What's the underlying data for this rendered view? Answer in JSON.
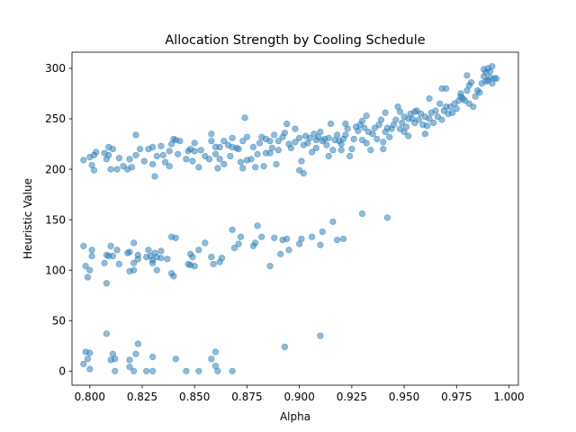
{
  "chart_data": {
    "type": "scatter",
    "title": "Allocation Strength by Cooling Schedule",
    "xlabel": "Alpha",
    "ylabel": "Heuristic Value",
    "xlim": [
      0.7915,
      1.0045
    ],
    "ylim": [
      -14.0,
      316.0
    ],
    "x_ticks": [
      0.8,
      0.825,
      0.85,
      0.875,
      0.9,
      0.925,
      0.95,
      0.975,
      1.0
    ],
    "x_tick_labels": [
      "0.800",
      "0.825",
      "0.850",
      "0.875",
      "0.900",
      "0.925",
      "0.950",
      "0.975",
      "1.000"
    ],
    "y_ticks": [
      0,
      50,
      100,
      150,
      200,
      250,
      300
    ],
    "y_tick_labels": [
      "0",
      "50",
      "100",
      "150",
      "200",
      "250",
      "300"
    ],
    "grid": false,
    "marker_color": "#1f77b4",
    "marker_alpha": 0.5,
    "series": [
      {
        "values": [
          [
            0.797,
            209
          ],
          [
            0.8,
            212
          ],
          [
            0.801,
            204
          ],
          [
            0.802,
            199
          ],
          [
            0.802,
            214
          ],
          [
            0.803,
            217
          ],
          [
            0.807,
            216
          ],
          [
            0.808,
            210
          ],
          [
            0.809,
            214
          ],
          [
            0.809,
            222
          ],
          [
            0.81,
            200
          ],
          [
            0.811,
            220
          ],
          [
            0.813,
            200
          ],
          [
            0.814,
            211
          ],
          [
            0.816,
            203
          ],
          [
            0.818,
            200
          ],
          [
            0.819,
            210
          ],
          [
            0.82,
            202
          ],
          [
            0.822,
            214
          ],
          [
            0.822,
            234
          ],
          [
            0.824,
            220
          ],
          [
            0.826,
            208
          ],
          [
            0.828,
            220
          ],
          [
            0.83,
            205
          ],
          [
            0.83,
            222
          ],
          [
            0.831,
            193
          ],
          [
            0.832,
            213
          ],
          [
            0.834,
            223
          ],
          [
            0.835,
            214
          ],
          [
            0.836,
            207
          ],
          [
            0.838,
            203
          ],
          [
            0.838,
            218
          ],
          [
            0.839,
            225
          ],
          [
            0.84,
            230
          ],
          [
            0.841,
            229
          ],
          [
            0.842,
            215
          ],
          [
            0.843,
            228
          ],
          [
            0.846,
            210
          ],
          [
            0.847,
            218
          ],
          [
            0.848,
            220
          ],
          [
            0.849,
            208
          ],
          [
            0.85,
            218
          ],
          [
            0.85,
            226
          ],
          [
            0.852,
            202
          ],
          [
            0.853,
            219
          ],
          [
            0.855,
            213
          ],
          [
            0.857,
            210
          ],
          [
            0.858,
            235
          ],
          [
            0.858,
            228
          ],
          [
            0.86,
            215
          ],
          [
            0.86,
            222
          ],
          [
            0.861,
            201
          ],
          [
            0.862,
            210
          ],
          [
            0.862,
            222
          ],
          [
            0.864,
            205
          ],
          [
            0.864,
            228
          ],
          [
            0.866,
            224
          ],
          [
            0.867,
            213
          ],
          [
            0.868,
            222
          ],
          [
            0.868,
            231
          ],
          [
            0.87,
            221
          ],
          [
            0.871,
            220
          ],
          [
            0.872,
            207
          ],
          [
            0.873,
            201
          ],
          [
            0.873,
            228
          ],
          [
            0.874,
            251
          ],
          [
            0.875,
            209
          ],
          [
            0.875,
            232
          ],
          [
            0.877,
            210
          ],
          [
            0.878,
            222
          ],
          [
            0.879,
            202
          ],
          [
            0.88,
            215
          ],
          [
            0.881,
            226
          ],
          [
            0.882,
            232
          ],
          [
            0.883,
            203
          ],
          [
            0.884,
            216
          ],
          [
            0.884,
            230
          ],
          [
            0.886,
            216
          ],
          [
            0.886,
            228
          ],
          [
            0.887,
            221
          ],
          [
            0.888,
            234
          ],
          [
            0.889,
            205
          ],
          [
            0.89,
            219
          ],
          [
            0.89,
            228
          ],
          [
            0.892,
            232
          ],
          [
            0.893,
            236
          ],
          [
            0.894,
            245
          ],
          [
            0.895,
            225
          ],
          [
            0.896,
            221
          ],
          [
            0.898,
            240
          ],
          [
            0.898,
            227
          ],
          [
            0.9,
            199
          ],
          [
            0.9,
            231
          ],
          [
            0.901,
            208
          ],
          [
            0.902,
            196
          ],
          [
            0.902,
            224
          ],
          [
            0.903,
            233
          ],
          [
            0.904,
            226
          ],
          [
            0.905,
            231
          ],
          [
            0.906,
            217
          ],
          [
            0.907,
            235
          ],
          [
            0.908,
            229
          ],
          [
            0.908,
            221
          ],
          [
            0.909,
            232
          ],
          [
            0.91,
            237
          ],
          [
            0.911,
            228
          ],
          [
            0.912,
            230
          ],
          [
            0.913,
            224
          ],
          [
            0.914,
            213
          ],
          [
            0.914,
            231
          ],
          [
            0.915,
            245
          ],
          [
            0.916,
            219
          ],
          [
            0.917,
            229
          ],
          [
            0.918,
            234
          ],
          [
            0.919,
            228
          ],
          [
            0.92,
            219
          ],
          [
            0.92,
            225
          ],
          [
            0.921,
            230
          ],
          [
            0.922,
            234
          ],
          [
            0.922,
            245
          ],
          [
            0.923,
            240
          ],
          [
            0.924,
            213
          ],
          [
            0.925,
            220
          ],
          [
            0.926,
            230
          ],
          [
            0.927,
            242
          ],
          [
            0.928,
            238
          ],
          [
            0.929,
            244
          ],
          [
            0.93,
            248
          ],
          [
            0.93,
            229
          ],
          [
            0.931,
            241
          ],
          [
            0.932,
            226
          ],
          [
            0.932,
            253
          ],
          [
            0.933,
            237
          ],
          [
            0.934,
            219
          ],
          [
            0.935,
            235
          ],
          [
            0.936,
            241
          ],
          [
            0.937,
            230
          ],
          [
            0.938,
            244
          ],
          [
            0.939,
            249
          ],
          [
            0.94,
            227
          ],
          [
            0.94,
            220
          ],
          [
            0.941,
            237
          ],
          [
            0.941,
            256
          ],
          [
            0.942,
            241
          ],
          [
            0.943,
            232
          ],
          [
            0.944,
            240
          ],
          [
            0.945,
            244
          ],
          [
            0.946,
            249
          ],
          [
            0.947,
            262
          ],
          [
            0.948,
            240
          ],
          [
            0.948,
            257
          ],
          [
            0.949,
            246
          ],
          [
            0.95,
            252
          ],
          [
            0.95,
            237
          ],
          [
            0.951,
            242
          ],
          [
            0.952,
            250
          ],
          [
            0.952,
            233
          ],
          [
            0.953,
            255
          ],
          [
            0.954,
            250
          ],
          [
            0.955,
            246
          ],
          [
            0.955,
            257
          ],
          [
            0.956,
            258
          ],
          [
            0.957,
            249
          ],
          [
            0.958,
            255
          ],
          [
            0.959,
            244
          ],
          [
            0.96,
            252
          ],
          [
            0.96,
            235
          ],
          [
            0.961,
            243
          ],
          [
            0.962,
            270
          ],
          [
            0.962,
            250
          ],
          [
            0.963,
            256
          ],
          [
            0.964,
            246
          ],
          [
            0.965,
            258
          ],
          [
            0.966,
            252
          ],
          [
            0.967,
            265
          ],
          [
            0.968,
            280
          ],
          [
            0.968,
            249
          ],
          [
            0.969,
            258
          ],
          [
            0.97,
            262
          ],
          [
            0.97,
            280
          ],
          [
            0.971,
            255
          ],
          [
            0.972,
            262
          ],
          [
            0.973,
            256
          ],
          [
            0.974,
            265
          ],
          [
            0.975,
            260
          ],
          [
            0.976,
            268
          ],
          [
            0.977,
            272
          ],
          [
            0.977,
            275
          ],
          [
            0.978,
            270
          ],
          [
            0.979,
            268
          ],
          [
            0.98,
            278
          ],
          [
            0.98,
            293
          ],
          [
            0.981,
            283
          ],
          [
            0.981,
            265
          ],
          [
            0.982,
            286
          ],
          [
            0.983,
            262
          ],
          [
            0.984,
            272
          ],
          [
            0.985,
            278
          ],
          [
            0.986,
            276
          ],
          [
            0.987,
            285
          ],
          [
            0.988,
            292
          ],
          [
            0.988,
            299
          ],
          [
            0.989,
            287
          ],
          [
            0.989,
            296
          ],
          [
            0.99,
            288
          ],
          [
            0.99,
            300
          ],
          [
            0.991,
            297
          ],
          [
            0.991,
            291
          ],
          [
            0.992,
            302
          ],
          [
            0.992,
            285
          ],
          [
            0.993,
            290
          ],
          [
            0.994,
            290
          ]
        ]
      },
      {
        "values": [
          [
            0.797,
            124
          ],
          [
            0.798,
            104
          ],
          [
            0.799,
            93
          ],
          [
            0.8,
            100
          ],
          [
            0.801,
            114
          ],
          [
            0.801,
            120
          ],
          [
            0.807,
            107
          ],
          [
            0.808,
            87
          ],
          [
            0.808,
            115
          ],
          [
            0.809,
            114
          ],
          [
            0.81,
            124
          ],
          [
            0.811,
            114
          ],
          [
            0.813,
            120
          ],
          [
            0.814,
            106
          ],
          [
            0.818,
            117
          ],
          [
            0.819,
            99
          ],
          [
            0.819,
            118
          ],
          [
            0.821,
            107
          ],
          [
            0.821,
            127
          ],
          [
            0.821,
            100
          ],
          [
            0.823,
            115
          ],
          [
            0.823,
            111
          ],
          [
            0.827,
            113
          ],
          [
            0.828,
            120
          ],
          [
            0.829,
            114
          ],
          [
            0.83,
            107
          ],
          [
            0.83,
            110
          ],
          [
            0.831,
            117
          ],
          [
            0.832,
            100
          ],
          [
            0.832,
            113
          ],
          [
            0.834,
            119
          ],
          [
            0.834,
            112
          ],
          [
            0.837,
            111
          ],
          [
            0.839,
            97
          ],
          [
            0.839,
            133
          ],
          [
            0.84,
            94
          ],
          [
            0.841,
            132
          ],
          [
            0.847,
            106
          ],
          [
            0.848,
            116
          ],
          [
            0.848,
            105
          ],
          [
            0.849,
            113
          ],
          [
            0.85,
            104
          ],
          [
            0.852,
            120
          ],
          [
            0.855,
            127
          ],
          [
            0.858,
            113
          ],
          [
            0.859,
            106
          ],
          [
            0.862,
            108
          ],
          [
            0.863,
            112
          ],
          [
            0.868,
            140
          ],
          [
            0.869,
            122
          ],
          [
            0.871,
            126
          ],
          [
            0.872,
            133
          ],
          [
            0.878,
            124
          ],
          [
            0.879,
            127
          ],
          [
            0.88,
            144
          ],
          [
            0.882,
            133
          ],
          [
            0.886,
            104
          ],
          [
            0.888,
            132
          ],
          [
            0.891,
            116
          ],
          [
            0.892,
            130
          ],
          [
            0.894,
            131
          ],
          [
            0.895,
            120
          ],
          [
            0.9,
            126
          ],
          [
            0.901,
            131
          ],
          [
            0.906,
            133
          ],
          [
            0.91,
            125
          ],
          [
            0.911,
            138
          ],
          [
            0.916,
            148
          ],
          [
            0.918,
            130
          ],
          [
            0.921,
            131
          ],
          [
            0.93,
            156
          ],
          [
            0.942,
            152
          ]
        ]
      },
      {
        "values": [
          [
            0.797,
            7
          ],
          [
            0.798,
            19
          ],
          [
            0.799,
            12
          ],
          [
            0.8,
            2
          ],
          [
            0.8,
            18
          ],
          [
            0.808,
            37
          ],
          [
            0.81,
            11
          ],
          [
            0.811,
            17
          ],
          [
            0.812,
            0
          ],
          [
            0.812,
            12
          ],
          [
            0.819,
            11
          ],
          [
            0.819,
            4
          ],
          [
            0.821,
            0
          ],
          [
            0.822,
            17
          ],
          [
            0.823,
            27
          ],
          [
            0.827,
            0
          ],
          [
            0.83,
            0
          ],
          [
            0.83,
            14
          ],
          [
            0.841,
            12
          ],
          [
            0.846,
            0
          ],
          [
            0.852,
            0
          ],
          [
            0.858,
            12
          ],
          [
            0.86,
            19
          ],
          [
            0.86,
            5
          ],
          [
            0.861,
            0
          ],
          [
            0.868,
            0
          ],
          [
            0.893,
            24
          ],
          [
            0.91,
            35
          ]
        ]
      }
    ]
  }
}
